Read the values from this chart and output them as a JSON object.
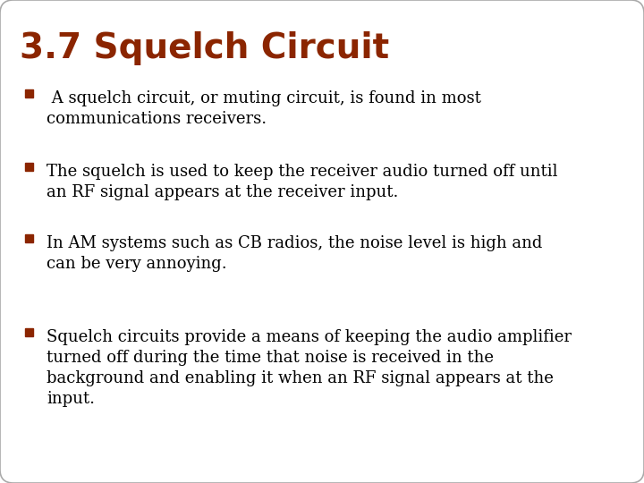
{
  "title": "3.7 Squelch Circuit",
  "title_color": "#8B2500",
  "background_color": "#FFFFFF",
  "border_color": "#AAAAAA",
  "bullet_color": "#8B2500",
  "text_color": "#000000",
  "bullets": [
    " A squelch circuit, or muting circuit, is found in most\ncommunications receivers.",
    "The squelch is used to keep the receiver audio turned off until\nan RF signal appears at the receiver input.",
    "In AM systems such as CB radios, the noise level is high and\ncan be very annoying.",
    "Squelch circuits provide a means of keeping the audio amplifier\nturned off during the time that noise is received in the\nbackground and enabling it when an RF signal appears at the\ninput."
  ],
  "title_fontsize": 28,
  "bullet_fontsize": 13,
  "fig_width": 7.2,
  "fig_height": 5.4,
  "dpi": 100
}
